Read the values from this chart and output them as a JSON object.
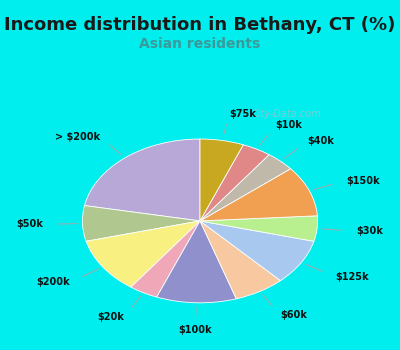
{
  "title": "Income distribution in Bethany, CT (%)",
  "subtitle": "Asian residents",
  "title_color": "#1a1a1a",
  "subtitle_color": "#3a9a9a",
  "bg_cyan": "#00EEEE",
  "bg_inner": "#e0f0e8",
  "labels": [
    "> $200k",
    "$50k",
    "$200k",
    "$20k",
    "$100k",
    "$60k",
    "$125k",
    "$30k",
    "$150k",
    "$40k",
    "$10k",
    "$75k"
  ],
  "sizes": [
    22,
    7,
    11,
    4,
    11,
    7,
    9,
    5,
    10,
    4,
    4,
    6
  ],
  "colors": [
    "#b8a8d8",
    "#b0c890",
    "#f8f080",
    "#f0a8b8",
    "#9090cc",
    "#f8c8a0",
    "#a8c8f0",
    "#b8f090",
    "#f0a050",
    "#c0b8a8",
    "#e08888",
    "#c8a820"
  ],
  "startangle": 90,
  "title_fontsize": 13,
  "subtitle_fontsize": 10,
  "label_fontsize": 7
}
